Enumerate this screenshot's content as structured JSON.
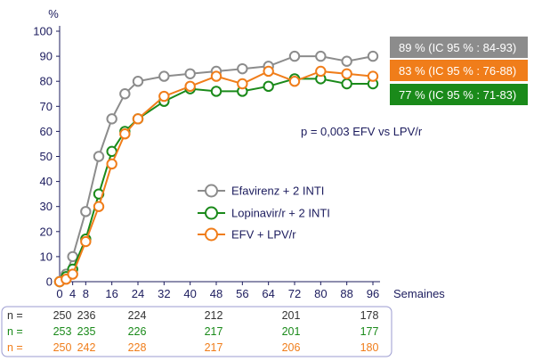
{
  "colors": {
    "efv": "#8c8c8c",
    "lpv": "#1a8a1a",
    "efv_lpv": "#f07d1a",
    "text": "#1c1c5e",
    "table_border": "#9b9bd0"
  },
  "chart_data": {
    "type": "line",
    "ylabel": "%",
    "xlabel": "Semaines",
    "ylim": [
      0,
      100
    ],
    "yticks": [
      0,
      10,
      20,
      30,
      40,
      50,
      60,
      70,
      80,
      90,
      100
    ],
    "xlim": [
      0,
      96
    ],
    "xticks": [
      0,
      4,
      8,
      16,
      24,
      32,
      40,
      48,
      56,
      64,
      72,
      80,
      88,
      96
    ],
    "grid": false,
    "legend_position": "center",
    "series": [
      {
        "key": "efv",
        "name": "Efavirenz + 2 INTI",
        "x": [
          0,
          2,
          4,
          8,
          12,
          16,
          20,
          24,
          32,
          40,
          48,
          56,
          64,
          72,
          80,
          88,
          96
        ],
        "values": [
          0,
          3,
          10,
          28,
          50,
          65,
          75,
          80,
          82,
          83,
          84,
          85,
          86,
          90,
          90,
          88,
          90
        ]
      },
      {
        "key": "lpv",
        "name": "Lopinavir/r + 2 INTI",
        "x": [
          0,
          2,
          4,
          8,
          12,
          16,
          20,
          24,
          32,
          40,
          48,
          56,
          64,
          72,
          80,
          88,
          96
        ],
        "values": [
          0,
          2,
          5,
          17,
          35,
          52,
          60,
          65,
          72,
          77,
          76,
          76,
          78,
          81,
          81,
          79,
          79
        ]
      },
      {
        "key": "efv_lpv",
        "name": "EFV + LPV/r",
        "x": [
          0,
          2,
          4,
          8,
          12,
          16,
          20,
          24,
          32,
          40,
          48,
          56,
          64,
          72,
          80,
          88,
          96
        ],
        "values": [
          0,
          1,
          3,
          16,
          30,
          47,
          59,
          65,
          74,
          78,
          82,
          79,
          84,
          80,
          84,
          83,
          82
        ]
      }
    ],
    "result_boxes": [
      {
        "key": "efv",
        "label": "89 % (IC 95 % : 84-93)"
      },
      {
        "key": "efv_lpv",
        "label": "83 % (IC 95 % : 76-88)"
      },
      {
        "key": "lpv",
        "label": "77 % (IC 95 % : 71-83)"
      }
    ],
    "annotation": "p = 0,003 EFV vs LPV/r",
    "n_table": {
      "weeks": [
        0,
        8,
        24,
        48,
        72,
        96
      ],
      "rows": [
        {
          "key": "efv",
          "label": "n =",
          "values": [
            "250",
            "236",
            "224",
            "212",
            "201",
            "178"
          ]
        },
        {
          "key": "lpv",
          "label": "n =",
          "values": [
            "253",
            "235",
            "226",
            "217",
            "201",
            "177"
          ]
        },
        {
          "key": "efv_lpv",
          "label": "n =",
          "values": [
            "250",
            "242",
            "228",
            "217",
            "206",
            "180"
          ]
        }
      ]
    }
  }
}
